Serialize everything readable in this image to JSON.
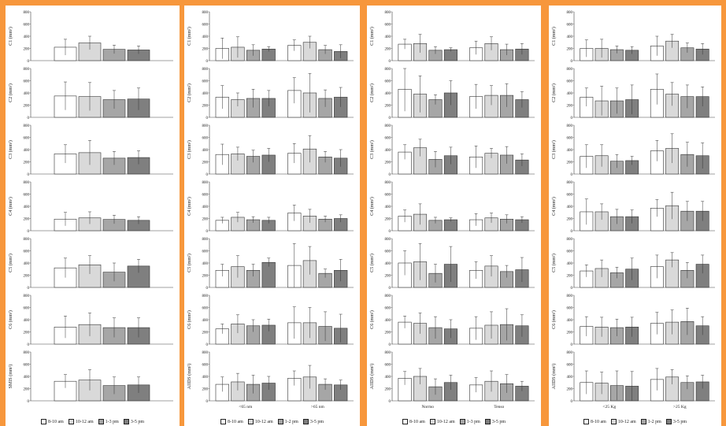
{
  "legend": {
    "groups": [
      [
        "8-10 am",
        "10-12 am",
        "1-3 pm",
        "3-5 pm"
      ],
      [
        "8-10 am",
        "10-12 am",
        "1-2 pm",
        "3-5 pm"
      ],
      [
        "8-10 am",
        "10-12 am",
        "1-3 pm",
        "3-5 pm"
      ],
      [
        "8-10 am",
        "10-12 am",
        "1-2 pm",
        "3-5 pm"
      ]
    ]
  },
  "colors": [
    "#ffffff",
    "#d9d9d9",
    "#a6a6a6",
    "#7f7f7f"
  ],
  "chart_data": [
    {
      "type": "bar",
      "panel": 0,
      "categories": [
        ""
      ],
      "rows": [
        {
          "ylabel": "C1 (mm²)",
          "ylim": [
            0,
            800
          ],
          "values": [
            [
              220,
              290,
              185,
              175
            ]
          ],
          "errors": [
            [
              130,
              110,
              70,
              65
            ]
          ]
        },
        {
          "ylabel": "C2 (mm²)",
          "ylim": [
            0,
            800
          ],
          "values": [
            [
              350,
              340,
              290,
              300
            ]
          ],
          "errors": [
            [
              230,
              230,
              150,
              180
            ]
          ]
        },
        {
          "ylabel": "C3 (mm²)",
          "ylim": [
            0,
            800
          ],
          "values": [
            [
              330,
              350,
              260,
              270
            ]
          ],
          "errors": [
            [
              150,
              200,
              110,
              110
            ]
          ]
        },
        {
          "ylabel": "C4 (mm²)",
          "ylim": [
            0,
            800
          ],
          "values": [
            [
              190,
              210,
              185,
              170
            ]
          ],
          "errors": [
            [
              110,
              100,
              70,
              60
            ]
          ]
        },
        {
          "ylabel": "C5 (mm²)",
          "ylim": [
            0,
            800
          ],
          "values": [
            [
              320,
              370,
              250,
              350
            ]
          ],
          "errors": [
            [
              160,
              150,
              150,
              110
            ]
          ]
        },
        {
          "ylabel": "C6 (mm²)",
          "ylim": [
            0,
            800
          ],
          "values": [
            [
              280,
              320,
              270,
              270
            ]
          ],
          "errors": [
            [
              180,
              190,
              160,
              160
            ]
          ]
        },
        {
          "ylabel": "SMIS (mm²)",
          "ylim": [
            0,
            800
          ],
          "values": [
            [
              320,
              340,
              250,
              260
            ]
          ],
          "errors": [
            [
              110,
              170,
              140,
              130
            ]
          ]
        }
      ]
    },
    {
      "type": "bar",
      "panel": 1,
      "categories": [
        "<65 nm",
        ">65 nm"
      ],
      "rows": [
        {
          "ylabel": "C1 (mm²)",
          "ylim": [
            0,
            800
          ],
          "values": [
            [
              200,
              220,
              170,
              190
            ],
            [
              250,
              300,
              180,
              150
            ]
          ],
          "errors": [
            [
              170,
              170,
              90,
              40
            ],
            [
              90,
              100,
              70,
              110
            ]
          ]
        },
        {
          "ylabel": "C2 (mm²)",
          "ylim": [
            0,
            800
          ],
          "values": [
            [
              330,
              290,
              310,
              310
            ],
            [
              440,
              400,
              310,
              330
            ]
          ],
          "errors": [
            [
              190,
              110,
              150,
              130
            ],
            [
              210,
              320,
              140,
              160
            ]
          ]
        },
        {
          "ylabel": "C3 (mm²)",
          "ylim": [
            0,
            800
          ],
          "values": [
            [
              320,
              330,
              290,
              310
            ],
            [
              340,
              410,
              280,
              260
            ]
          ],
          "errors": [
            [
              170,
              110,
              100,
              110
            ],
            [
              160,
              220,
              90,
              140
            ]
          ]
        },
        {
          "ylabel": "C4 (mm²)",
          "ylim": [
            0,
            800
          ],
          "values": [
            [
              170,
              220,
              180,
              170
            ],
            [
              290,
              240,
              190,
              200
            ]
          ],
          "errors": [
            [
              50,
              80,
              50,
              50
            ],
            [
              130,
              110,
              50,
              60
            ]
          ]
        },
        {
          "ylabel": "C5 (mm²)",
          "ylim": [
            0,
            800
          ],
          "values": [
            [
              280,
              340,
              280,
              410
            ],
            [
              360,
              440,
              230,
              280
            ]
          ],
          "errors": [
            [
              100,
              180,
              100,
              70
            ],
            [
              360,
              230,
              70,
              180
            ]
          ]
        },
        {
          "ylabel": "C6 (mm²)",
          "ylim": [
            0,
            800
          ],
          "values": [
            [
              250,
              330,
              300,
              310
            ],
            [
              350,
              350,
              290,
              260
            ]
          ],
          "errors": [
            [
              80,
              150,
              100,
              100
            ],
            [
              260,
              250,
              240,
              230
            ]
          ]
        },
        {
          "ylabel": "AIIDS (mm²)",
          "ylim": [
            0,
            800
          ],
          "values": [
            [
              270,
              310,
              270,
              290
            ],
            [
              370,
              390,
              270,
              260
            ]
          ],
          "errors": [
            [
              120,
              140,
              150,
              110
            ],
            [
              120,
              190,
              90,
              80
            ]
          ]
        }
      ]
    },
    {
      "type": "bar",
      "panel": 2,
      "categories": [
        "Normo",
        "Tenso"
      ],
      "rows": [
        {
          "ylabel": "C1 (mm²)",
          "ylim": [
            0,
            800
          ],
          "values": [
            [
              270,
              280,
              170,
              180
            ],
            [
              210,
              280,
              180,
              190
            ]
          ],
          "errors": [
            [
              80,
              150,
              60,
              30
            ],
            [
              110,
              110,
              90,
              90
            ]
          ]
        },
        {
          "ylabel": "C2 (mm²)",
          "ylim": [
            0,
            800
          ],
          "values": [
            [
              460,
              380,
              290,
              400
            ],
            [
              340,
              360,
              360,
              290
            ]
          ],
          "errors": [
            [
              360,
              300,
              80,
              200
            ],
            [
              200,
              160,
              190,
              130
            ]
          ]
        },
        {
          "ylabel": "C3 (mm²)",
          "ylim": [
            0,
            800
          ],
          "values": [
            [
              360,
              430,
              240,
              300
            ],
            [
              280,
              340,
              310,
              230
            ]
          ],
          "errors": [
            [
              120,
              140,
              130,
              140
            ],
            [
              180,
              80,
              140,
              100
            ]
          ]
        },
        {
          "ylabel": "C4 (mm²)",
          "ylim": [
            0,
            800
          ],
          "values": [
            [
              240,
              270,
              170,
              180
            ],
            [
              180,
              210,
              190,
              180
            ]
          ],
          "errors": [
            [
              100,
              170,
              50,
              30
            ],
            [
              100,
              80,
              70,
              50
            ]
          ]
        },
        {
          "ylabel": "C5 (mm²)",
          "ylim": [
            0,
            800
          ],
          "values": [
            [
              400,
              420,
              230,
              380
            ],
            [
              280,
              350,
              260,
              290
            ]
          ],
          "errors": [
            [
              200,
              300,
              150,
              290
            ],
            [
              140,
              170,
              100,
              200
            ]
          ]
        },
        {
          "ylabel": "C6 (mm²)",
          "ylim": [
            0,
            800
          ],
          "values": [
            [
              360,
              340,
              270,
              250
            ],
            [
              260,
              310,
              320,
              300
            ]
          ],
          "errors": [
            [
              100,
              170,
              180,
              150
            ],
            [
              190,
              220,
              260,
              180
            ]
          ]
        },
        {
          "ylabel": "AIIDS (mm²)",
          "ylim": [
            0,
            800
          ],
          "values": [
            [
              370,
              400,
              230,
              300
            ],
            [
              260,
              320,
              280,
              240
            ]
          ],
          "errors": [
            [
              110,
              130,
              130,
              120
            ],
            [
              120,
              170,
              150,
              80
            ]
          ]
        }
      ]
    },
    {
      "type": "bar",
      "panel": 3,
      "categories": [
        "<25 Kg",
        ">25 Kg"
      ],
      "rows": [
        {
          "ylabel": "C1 (mm²)",
          "ylim": [
            0,
            800
          ],
          "values": [
            [
              200,
              200,
              180,
              170
            ],
            [
              240,
              320,
              210,
              190
            ]
          ],
          "errors": [
            [
              140,
              150,
              60,
              60
            ],
            [
              160,
              110,
              80,
              90
            ]
          ]
        },
        {
          "ylabel": "C2 (mm²)",
          "ylim": [
            0,
            800
          ],
          "values": [
            [
              330,
              270,
              270,
              290
            ],
            [
              460,
              380,
              340,
              340
            ]
          ],
          "errors": [
            [
              150,
              240,
              210,
              240
            ],
            [
              250,
              190,
              190,
              160
            ]
          ]
        },
        {
          "ylabel": "C3 (mm²)",
          "ylim": [
            0,
            800
          ],
          "values": [
            [
              290,
              300,
              210,
              220
            ],
            [
              380,
              420,
              320,
              300
            ]
          ],
          "errors": [
            [
              190,
              180,
              110,
              70
            ],
            [
              170,
              240,
              200,
              210
            ]
          ]
        },
        {
          "ylabel": "C4 (mm²)",
          "ylim": [
            0,
            800
          ],
          "values": [
            [
              310,
              310,
              230,
              230
            ],
            [
              370,
              410,
              320,
              320
            ]
          ],
          "errors": [
            [
              210,
              130,
              120,
              110
            ],
            [
              140,
              220,
              160,
              160
            ]
          ]
        },
        {
          "ylabel": "C5 (mm²)",
          "ylim": [
            0,
            800
          ],
          "values": [
            [
              270,
              310,
              240,
              300
            ],
            [
              340,
              450,
              280,
              380
            ]
          ],
          "errors": [
            [
              100,
              140,
              90,
              180
            ],
            [
              190,
              120,
              130,
              150
            ]
          ]
        },
        {
          "ylabel": "C6 (mm²)",
          "ylim": [
            0,
            800
          ],
          "values": [
            [
              290,
              280,
              270,
              280
            ],
            [
              340,
              360,
              370,
              300
            ]
          ],
          "errors": [
            [
              160,
              160,
              140,
              160
            ],
            [
              180,
              200,
              220,
              150
            ]
          ]
        },
        {
          "ylabel": "AIIDS (mm²)",
          "ylim": [
            0,
            800
          ],
          "values": [
            [
              300,
              290,
              250,
              240
            ],
            [
              350,
              390,
              300,
              310
            ]
          ],
          "errors": [
            [
              190,
              180,
              240,
              240
            ],
            [
              180,
              120,
              110,
              110
            ]
          ]
        }
      ]
    }
  ]
}
